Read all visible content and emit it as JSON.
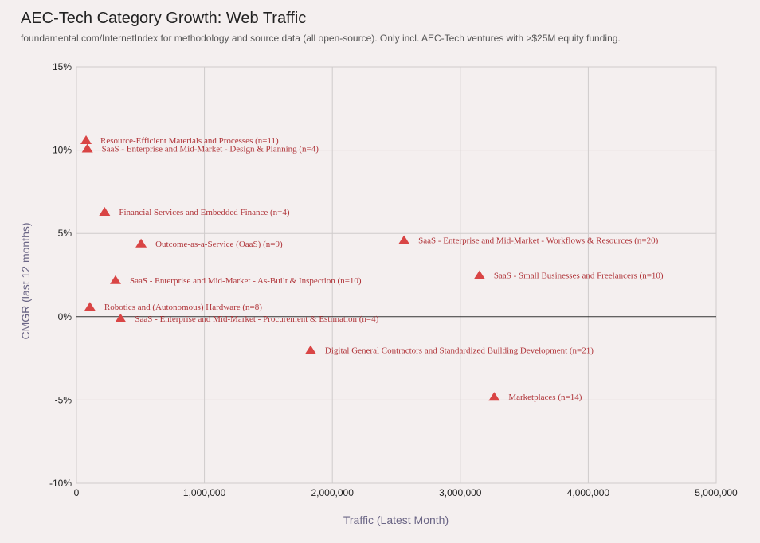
{
  "chart_data": {
    "type": "scatter",
    "title": "AEC-Tech Category Growth: Web Traffic",
    "subtitle": "foundamental.com/InternetIndex for methodology and source data (all open-source). Only incl. AEC-Tech ventures with >$25M equity funding.",
    "xlabel": "Traffic (Latest Month)",
    "ylabel": "CMGR (last 12 months)",
    "xlim": [
      0,
      5000000
    ],
    "ylim": [
      -10,
      15
    ],
    "x_ticks": [
      {
        "value": 0,
        "label": "0"
      },
      {
        "value": 1000000,
        "label": "1,000,000"
      },
      {
        "value": 2000000,
        "label": "2,000,000"
      },
      {
        "value": 3000000,
        "label": "3,000,000"
      },
      {
        "value": 4000000,
        "label": "4,000,000"
      },
      {
        "value": 5000000,
        "label": "5,000,000"
      }
    ],
    "y_ticks": [
      {
        "value": 15,
        "label": "15%"
      },
      {
        "value": 10,
        "label": "10%"
      },
      {
        "value": 5,
        "label": "5%"
      },
      {
        "value": 0,
        "label": "0%"
      },
      {
        "value": -5,
        "label": "-5%"
      },
      {
        "value": -10,
        "label": "-10%"
      }
    ],
    "grid": true,
    "marker": "triangle",
    "marker_color": "#d94545",
    "label_color": "#b0353a",
    "points": [
      {
        "label": "Resource-Efficient Materials and Processes (n=11)",
        "x": 75000,
        "y": 10.6
      },
      {
        "label": "SaaS - Enterprise and Mid-Market - Design & Planning (n=4)",
        "x": 85000,
        "y": 10.1
      },
      {
        "label": "Financial Services and Embedded Finance (n=4)",
        "x": 220000,
        "y": 6.3
      },
      {
        "label": "Outcome-as-a-Service (OaaS) (n=9)",
        "x": 505000,
        "y": 4.4
      },
      {
        "label": "SaaS - Enterprise and Mid-Market - Workflows & Resources (n=20)",
        "x": 2560000,
        "y": 4.6
      },
      {
        "label": "SaaS - Small Businesses and Freelancers (n=10)",
        "x": 3150000,
        "y": 2.5
      },
      {
        "label": "SaaS - Enterprise and Mid-Market - As-Built & Inspection (n=10)",
        "x": 305000,
        "y": 2.2
      },
      {
        "label": "Robotics and (Autonomous) Hardware (n=8)",
        "x": 105000,
        "y": 0.6
      },
      {
        "label": "SaaS - Enterprise and Mid-Market - Procurement & Estimation (n=4)",
        "x": 345000,
        "y": -0.1
      },
      {
        "label": "Digital General Contractors and Standardized Building Development (n=21)",
        "x": 1830000,
        "y": -2.0
      },
      {
        "label": "Marketplaces (n=14)",
        "x": 3265000,
        "y": -4.8
      }
    ]
  }
}
